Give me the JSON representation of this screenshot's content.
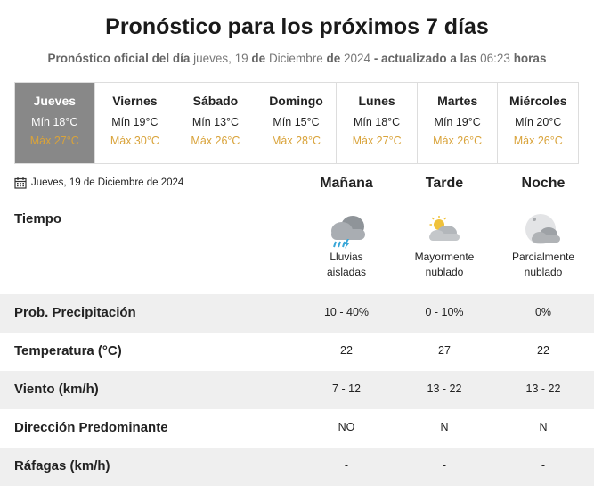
{
  "header": {
    "title": "Pronóstico para los próximos 7 días",
    "subtitle_prefix": "Pronóstico oficial del día",
    "subtitle_weekday": "jueves, 19",
    "subtitle_de1": "de",
    "subtitle_month": "Diciembre",
    "subtitle_de2": "de",
    "subtitle_year": "2024",
    "subtitle_updated": "- actualizado a las",
    "subtitle_time": "06:23",
    "subtitle_suffix": "horas"
  },
  "days": [
    {
      "name": "Jueves",
      "min": "Mín 18°C",
      "max": "Máx 27°C",
      "active": true
    },
    {
      "name": "Viernes",
      "min": "Mín 19°C",
      "max": "Máx 30°C",
      "active": false
    },
    {
      "name": "Sábado",
      "min": "Mín 13°C",
      "max": "Máx 26°C",
      "active": false
    },
    {
      "name": "Domingo",
      "min": "Mín 15°C",
      "max": "Máx 28°C",
      "active": false
    },
    {
      "name": "Lunes",
      "min": "Mín 18°C",
      "max": "Máx 27°C",
      "active": false
    },
    {
      "name": "Martes",
      "min": "Mín 19°C",
      "max": "Máx 26°C",
      "active": false
    },
    {
      "name": "Miércoles",
      "min": "Mín 20°C",
      "max": "Máx 26°C",
      "active": false
    }
  ],
  "detail": {
    "date": "Jueves, 19 de Diciembre de 2024",
    "date_icon": "calendar-icon",
    "columns": [
      "Mañana",
      "Tarde",
      "Noche"
    ],
    "tiempo_label": "Tiempo",
    "weather": [
      {
        "icon": "rain-cloud-icon",
        "line1": "Lluvias",
        "line2": "aisladas"
      },
      {
        "icon": "sun-cloud-icon",
        "line1": "Mayormente",
        "line2": "nublado"
      },
      {
        "icon": "moon-cloud-icon",
        "line1": "Parcialmente",
        "line2": "nublado"
      }
    ],
    "rows": [
      {
        "label": "Prob. Precipitación",
        "values": [
          "10 - 40%",
          "0 - 10%",
          "0%"
        ]
      },
      {
        "label": "Temperatura (°C)",
        "values": [
          "22",
          "27",
          "22"
        ]
      },
      {
        "label": "Viento (km/h)",
        "values": [
          "7 - 12",
          "13 - 22",
          "13 - 22"
        ]
      },
      {
        "label": "Dirección Predominante",
        "values": [
          "NO",
          "N",
          "N"
        ]
      },
      {
        "label": "Ráfagas (km/h)",
        "values": [
          "-",
          "-",
          "-"
        ]
      }
    ]
  },
  "colors": {
    "active_day_bg": "#888888",
    "max_temp": "#d9a33a",
    "row_shade": "#efefef"
  }
}
